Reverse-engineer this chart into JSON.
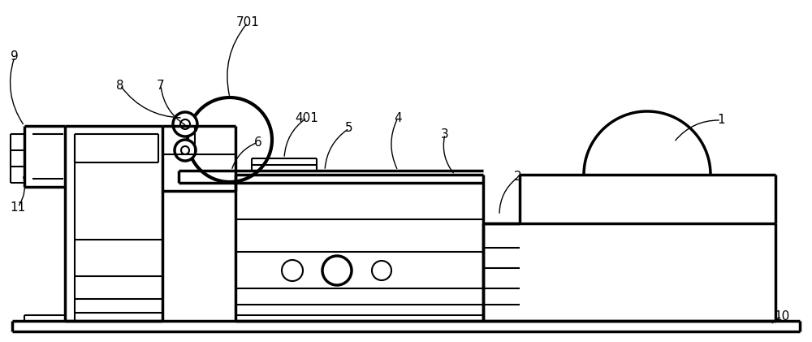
{
  "bg_color": "#ffffff",
  "line_color": "#000000",
  "lw": 1.5,
  "lw_thick": 2.5,
  "fig_width": 10.0,
  "fig_height": 4.21,
  "dpi": 100
}
